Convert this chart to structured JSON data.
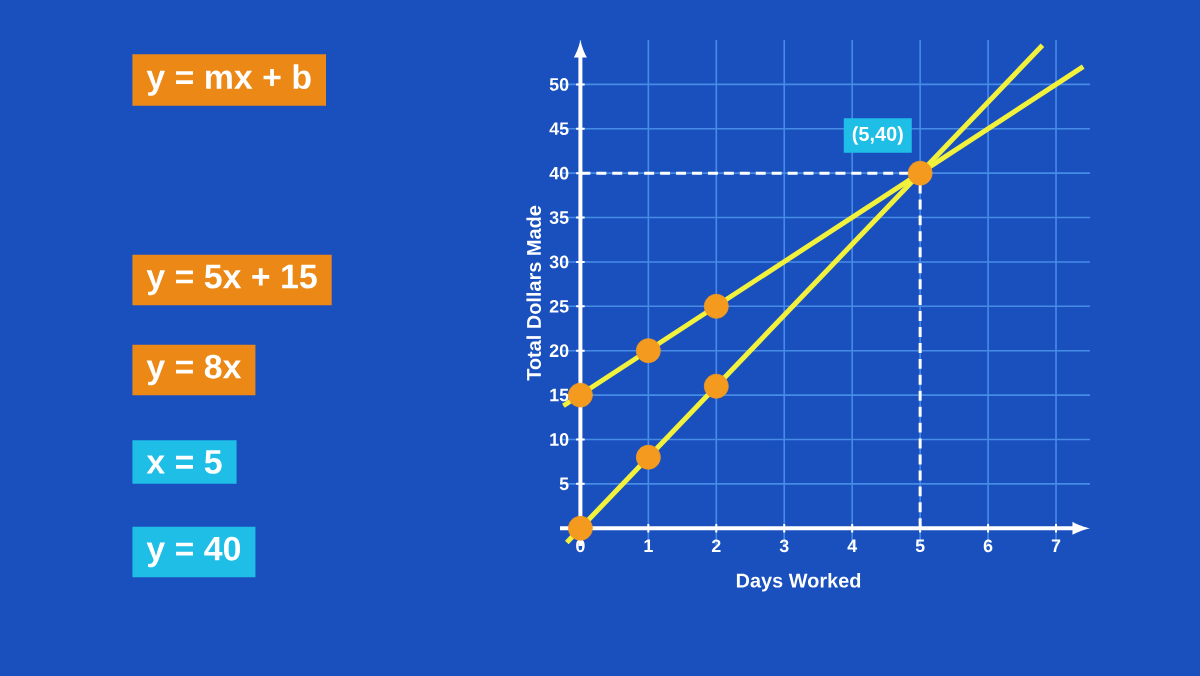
{
  "chart_data": {
    "type": "line",
    "xlabel": "Days Worked",
    "ylabel": "Total Dollars Made",
    "xlim": [
      -0.3,
      7.5
    ],
    "ylim": [
      -2,
      55
    ],
    "xticks": [
      0,
      1,
      2,
      3,
      4,
      5,
      6,
      7
    ],
    "yticks": [
      5,
      10,
      15,
      20,
      25,
      30,
      35,
      40,
      45,
      50
    ],
    "grid": true,
    "series": [
      {
        "color": "#f2f23c",
        "marker": "none",
        "x": [
          -0.25,
          7.4
        ],
        "values": [
          13.8,
          52
        ]
      },
      {
        "color": "#f2f23c",
        "marker": "none",
        "x": [
          -0.2,
          6.8
        ],
        "values": [
          -1.6,
          54.4
        ]
      },
      {
        "type": "scatter",
        "color": "#f39a1f",
        "marker": "circle",
        "x": [
          0,
          1,
          2,
          5
        ],
        "values": [
          15,
          20,
          25,
          40
        ]
      },
      {
        "type": "scatter",
        "color": "#f39a1f",
        "marker": "circle",
        "x": [
          0,
          1,
          2
        ],
        "values": [
          0,
          8,
          16
        ]
      }
    ],
    "ref_lines": [
      {
        "axis": "x",
        "value": 5,
        "line_style": "dashed",
        "color": "#ffffff"
      },
      {
        "axis": "y",
        "value": 40,
        "line_style": "dashed",
        "color": "#ffffff"
      }
    ],
    "annotations": [
      {
        "text": "(5,40)",
        "x": 5,
        "y": 40
      },
      "y = mx + b",
      "y = 5x + 15",
      "y = 8x",
      "x = 5",
      "y = 40"
    ]
  }
}
